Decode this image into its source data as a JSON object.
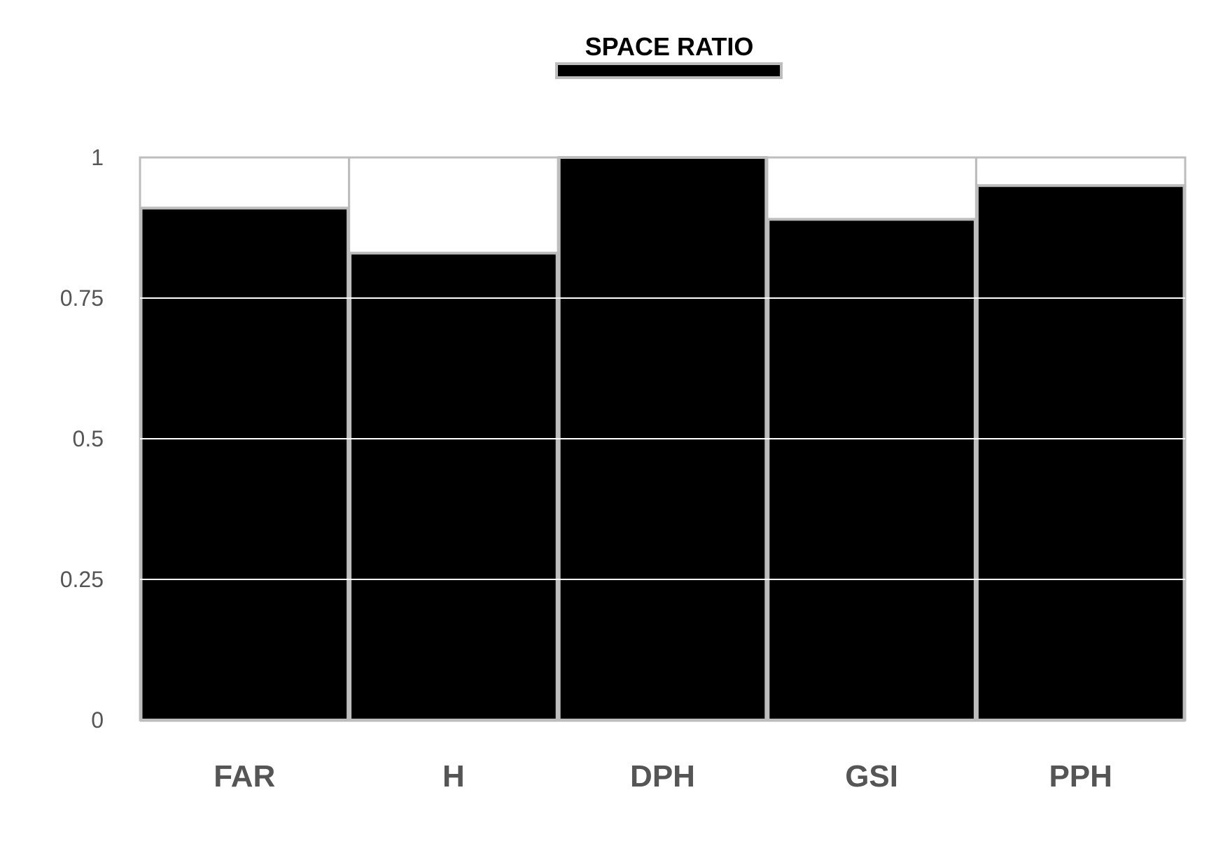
{
  "chart_data": {
    "type": "bar",
    "categories": [
      "FAR",
      "H",
      "DPH",
      "GSI",
      "PPH"
    ],
    "series": [
      {
        "name": "SPACE RATIO",
        "values": [
          0.91,
          0.83,
          1.0,
          0.89,
          0.95
        ]
      }
    ],
    "ylim": [
      0,
      1
    ],
    "yticks": [
      0,
      0.25,
      0.5,
      0.75,
      1
    ],
    "ytick_labels": [
      "0",
      "0.25",
      "0.5",
      "0.75",
      "1"
    ],
    "grid": true,
    "legend_position": "top-center",
    "colors": {
      "bar_fill": "#000000",
      "bar_stroke": "#bdbdbd",
      "plot_background": "#ffffff",
      "gridline": "#ffffff",
      "axis_text": "#555555",
      "legend_text": "#000000"
    }
  }
}
